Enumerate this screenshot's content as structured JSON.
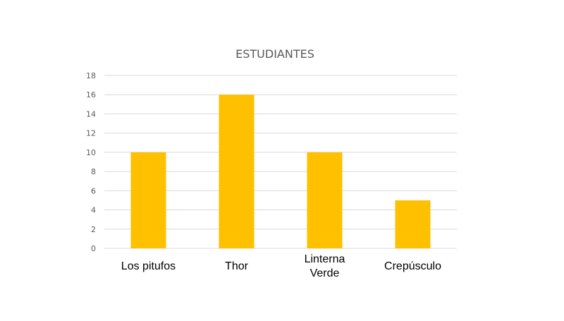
{
  "chart_data": {
    "type": "bar",
    "title": "ESTUDIANTES",
    "categories": [
      "Los pitufos",
      "Thor",
      "Linterna Verde",
      "Crepúsculo"
    ],
    "category_lines": [
      [
        "Los pitufos"
      ],
      [
        "Thor"
      ],
      [
        "Linterna",
        "Verde"
      ],
      [
        "Crepúsculo"
      ]
    ],
    "values": [
      10,
      16,
      10,
      5
    ],
    "ylim": [
      0,
      18
    ],
    "yticks": [
      0,
      2,
      4,
      6,
      8,
      10,
      12,
      14,
      16,
      18
    ],
    "grid": true,
    "legend": "none",
    "bar_color": "#FFC000"
  }
}
